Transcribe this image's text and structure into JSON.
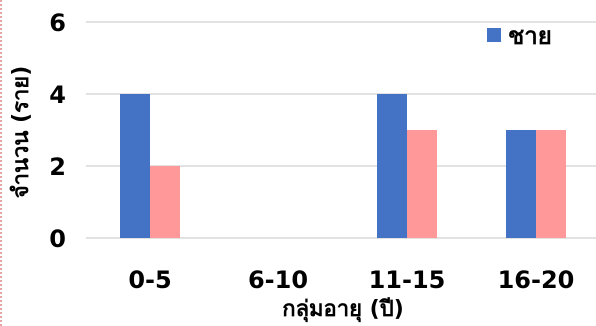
{
  "chart_data": {
    "type": "bar",
    "categories": [
      "0-5",
      "6-10",
      "11-15",
      "16-20"
    ],
    "series": [
      {
        "name": "ชาย",
        "values": [
          4,
          0,
          4,
          3
        ],
        "color": "#4472C4"
      },
      {
        "values": [
          2,
          0,
          3,
          3
        ],
        "color": "#FF9999"
      }
    ],
    "xlabel": "กลุ่มอายุ (ปี)",
    "ylabel": "จำนวน (ราย)",
    "ylim": [
      0,
      6
    ],
    "yticks": [
      0,
      2,
      4,
      6
    ],
    "grid": true,
    "legend_position": "top-right"
  }
}
